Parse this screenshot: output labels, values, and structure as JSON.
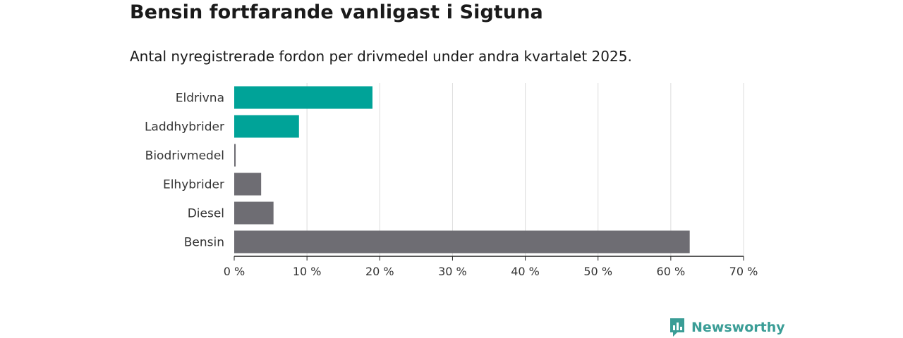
{
  "title": "Bensin fortfarande vanligast i Sigtuna",
  "subtitle": "Antal nyregistrerade fordon per drivmedel under andra kvartalet 2025.",
  "brand": {
    "name": "Newsworthy"
  },
  "colors": {
    "highlight": "#00a398",
    "default": "#6e6d73",
    "grid": "#dddddd",
    "axis": "#222222"
  },
  "chart_data": {
    "type": "bar",
    "orientation": "horizontal",
    "categories": [
      "Eldrivna",
      "Laddhybrider",
      "Biodrivmedel",
      "Elhybrider",
      "Diesel",
      "Bensin"
    ],
    "values": [
      19.0,
      8.9,
      0.2,
      3.7,
      5.4,
      62.6
    ],
    "highlight": [
      true,
      true,
      false,
      false,
      false,
      false
    ],
    "xlim": [
      0,
      70
    ],
    "xticks": [
      0,
      10,
      20,
      30,
      40,
      50,
      60,
      70
    ],
    "xtick_suffix": " %",
    "grid": true
  }
}
